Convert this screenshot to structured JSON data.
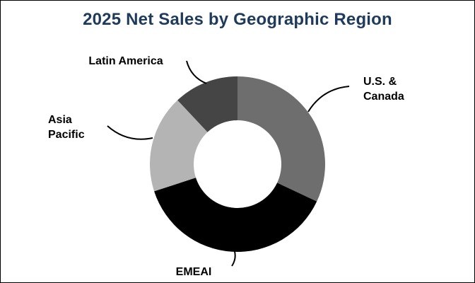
{
  "chart_data": {
    "type": "pie",
    "variant": "donut",
    "title": "2025 Net Sales by Geographic Region",
    "slices": [
      {
        "label": "U.S. & Canada",
        "label_lines": [
          "U.S. &",
          "Canada"
        ],
        "value": 32,
        "color": "#6e6e6e"
      },
      {
        "label": "EMEAI",
        "label_lines": [
          "EMEAI"
        ],
        "value": 38,
        "color": "#000000"
      },
      {
        "label": "Asia Pacific",
        "label_lines": [
          "Asia",
          "Pacific"
        ],
        "value": 18,
        "color": "#b4b4b4"
      },
      {
        "label": "Latin America",
        "label_lines": [
          "Latin America"
        ],
        "value": 12,
        "color": "#454545"
      }
    ],
    "start_angle": "12 o'clock",
    "direction": "clockwise",
    "legend": "none",
    "labels": "outside with leader lines",
    "title_color": "#1f3b5c"
  }
}
